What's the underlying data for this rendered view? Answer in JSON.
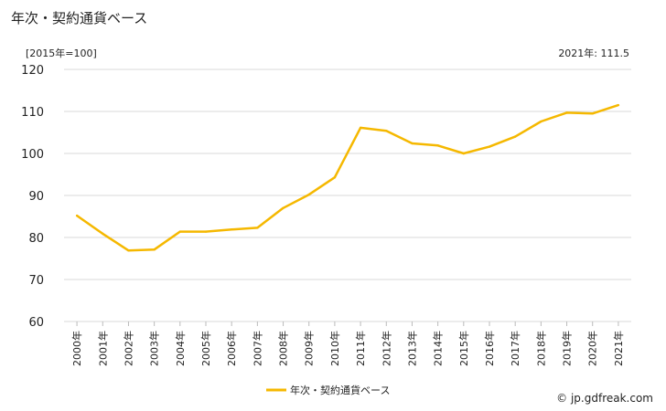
{
  "chart_data": {
    "type": "line",
    "title": "年次・契約通貨ベース",
    "unit_label": "[2015年=100]",
    "latest_label": "2021年: 111.5",
    "credit": "© jp.gdfreak.com",
    "categories": [
      "2000年",
      "2001年",
      "2002年",
      "2003年",
      "2004年",
      "2005年",
      "2006年",
      "2007年",
      "2008年",
      "2009年",
      "2010年",
      "2011年",
      "2012年",
      "2013年",
      "2014年",
      "2015年",
      "2016年",
      "2017年",
      "2018年",
      "2019年",
      "2020年",
      "2021年"
    ],
    "series": [
      {
        "name": "年次・契約通貨ベース",
        "color": "#f5b800",
        "values": [
          85.2,
          80.9,
          76.9,
          77.1,
          81.4,
          81.4,
          81.9,
          82.3,
          87.0,
          90.2,
          94.3,
          106.1,
          105.4,
          102.4,
          101.9,
          100.0,
          101.6,
          104.0,
          107.6,
          109.7,
          109.5,
          111.5
        ]
      }
    ],
    "y_ticks": [
      "60",
      "70",
      "80",
      "90",
      "100",
      "110",
      "120"
    ],
    "ylim": [
      60,
      120
    ],
    "grid": true,
    "legend_position": "bottom"
  }
}
